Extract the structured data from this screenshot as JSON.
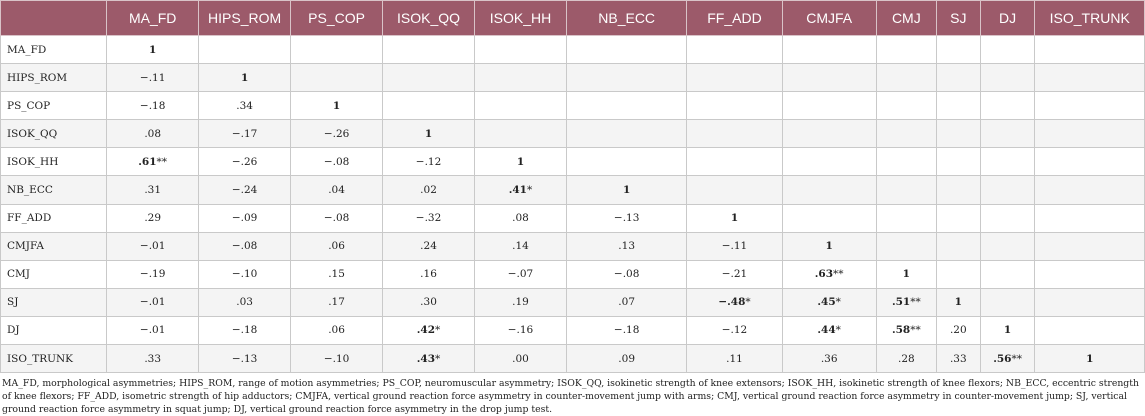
{
  "table": {
    "corner": "",
    "columns": [
      "MA_FD",
      "HIPS_ROM",
      "PS_COP",
      "ISOK_QQ",
      "ISOK_HH",
      "NB_ECC",
      "FF_ADD",
      "CMJFA",
      "CMJ",
      "SJ",
      "DJ",
      "ISO_TRUNK"
    ],
    "rows": [
      {
        "label": "MA_FD",
        "cells": [
          {
            "v": "1",
            "b": true
          },
          {
            "v": ""
          },
          {
            "v": ""
          },
          {
            "v": ""
          },
          {
            "v": ""
          },
          {
            "v": ""
          },
          {
            "v": ""
          },
          {
            "v": ""
          },
          {
            "v": ""
          },
          {
            "v": ""
          },
          {
            "v": ""
          },
          {
            "v": ""
          }
        ]
      },
      {
        "label": "HIPS_ROM",
        "cells": [
          {
            "v": "−.11"
          },
          {
            "v": "1",
            "b": true
          },
          {
            "v": ""
          },
          {
            "v": ""
          },
          {
            "v": ""
          },
          {
            "v": ""
          },
          {
            "v": ""
          },
          {
            "v": ""
          },
          {
            "v": ""
          },
          {
            "v": ""
          },
          {
            "v": ""
          },
          {
            "v": ""
          }
        ]
      },
      {
        "label": "PS_COP",
        "cells": [
          {
            "v": "−.18"
          },
          {
            "v": ".34"
          },
          {
            "v": "1",
            "b": true
          },
          {
            "v": ""
          },
          {
            "v": ""
          },
          {
            "v": ""
          },
          {
            "v": ""
          },
          {
            "v": ""
          },
          {
            "v": ""
          },
          {
            "v": ""
          },
          {
            "v": ""
          },
          {
            "v": ""
          }
        ]
      },
      {
        "label": "ISOK_QQ",
        "cells": [
          {
            "v": ".08"
          },
          {
            "v": "−.17"
          },
          {
            "v": "−.26"
          },
          {
            "v": "1",
            "b": true
          },
          {
            "v": ""
          },
          {
            "v": ""
          },
          {
            "v": ""
          },
          {
            "v": ""
          },
          {
            "v": ""
          },
          {
            "v": ""
          },
          {
            "v": ""
          },
          {
            "v": ""
          }
        ]
      },
      {
        "label": "ISOK_HH",
        "cells": [
          {
            "v": ".61",
            "b": true,
            "s": "**"
          },
          {
            "v": "−.26"
          },
          {
            "v": "−.08"
          },
          {
            "v": "−.12"
          },
          {
            "v": "1",
            "b": true
          },
          {
            "v": ""
          },
          {
            "v": ""
          },
          {
            "v": ""
          },
          {
            "v": ""
          },
          {
            "v": ""
          },
          {
            "v": ""
          },
          {
            "v": ""
          }
        ]
      },
      {
        "label": "NB_ECC",
        "cells": [
          {
            "v": ".31"
          },
          {
            "v": "−.24"
          },
          {
            "v": ".04"
          },
          {
            "v": ".02"
          },
          {
            "v": ".41",
            "b": true,
            "s": "*"
          },
          {
            "v": "1",
            "b": true
          },
          {
            "v": ""
          },
          {
            "v": ""
          },
          {
            "v": ""
          },
          {
            "v": ""
          },
          {
            "v": ""
          },
          {
            "v": ""
          }
        ]
      },
      {
        "label": "FF_ADD",
        "cells": [
          {
            "v": ".29"
          },
          {
            "v": "−.09"
          },
          {
            "v": "−.08"
          },
          {
            "v": "−.32"
          },
          {
            "v": ".08"
          },
          {
            "v": "−.13"
          },
          {
            "v": "1",
            "b": true
          },
          {
            "v": ""
          },
          {
            "v": ""
          },
          {
            "v": ""
          },
          {
            "v": ""
          },
          {
            "v": ""
          }
        ]
      },
      {
        "label": "CMJFA",
        "cells": [
          {
            "v": "−.01"
          },
          {
            "v": "−.08"
          },
          {
            "v": ".06"
          },
          {
            "v": ".24"
          },
          {
            "v": ".14"
          },
          {
            "v": ".13"
          },
          {
            "v": "−.11"
          },
          {
            "v": "1",
            "b": true
          },
          {
            "v": ""
          },
          {
            "v": ""
          },
          {
            "v": ""
          },
          {
            "v": ""
          }
        ]
      },
      {
        "label": "CMJ",
        "cells": [
          {
            "v": "−.19"
          },
          {
            "v": "−.10"
          },
          {
            "v": ".15"
          },
          {
            "v": ".16"
          },
          {
            "v": "−.07"
          },
          {
            "v": "−.08"
          },
          {
            "v": "−.21"
          },
          {
            "v": ".63",
            "b": true,
            "s": "**"
          },
          {
            "v": "1",
            "b": true
          },
          {
            "v": ""
          },
          {
            "v": ""
          },
          {
            "v": ""
          }
        ]
      },
      {
        "label": "SJ",
        "cells": [
          {
            "v": "−.01"
          },
          {
            "v": ".03"
          },
          {
            "v": ".17"
          },
          {
            "v": ".30"
          },
          {
            "v": ".19"
          },
          {
            "v": ".07"
          },
          {
            "v": "−.48",
            "b": true,
            "s": "*"
          },
          {
            "v": ".45",
            "b": true,
            "s": "*"
          },
          {
            "v": ".51",
            "b": true,
            "s": "**"
          },
          {
            "v": "1",
            "b": true
          },
          {
            "v": ""
          },
          {
            "v": ""
          }
        ]
      },
      {
        "label": "DJ",
        "cells": [
          {
            "v": "−.01"
          },
          {
            "v": "−.18"
          },
          {
            "v": ".06"
          },
          {
            "v": ".42",
            "b": true,
            "s": "*"
          },
          {
            "v": "−.16"
          },
          {
            "v": "−.18"
          },
          {
            "v": "−.12"
          },
          {
            "v": ".44",
            "b": true,
            "s": "*"
          },
          {
            "v": ".58",
            "b": true,
            "s": "**"
          },
          {
            "v": ".20"
          },
          {
            "v": "1",
            "b": true
          },
          {
            "v": ""
          }
        ]
      },
      {
        "label": "ISO_TRUNK",
        "cells": [
          {
            "v": ".33"
          },
          {
            "v": "−.13"
          },
          {
            "v": "−.10"
          },
          {
            "v": ".43",
            "b": true,
            "s": "*"
          },
          {
            "v": ".00"
          },
          {
            "v": ".09"
          },
          {
            "v": ".11"
          },
          {
            "v": ".36"
          },
          {
            "v": ".28"
          },
          {
            "v": ".33"
          },
          {
            "v": ".56",
            "b": true,
            "s": "**"
          },
          {
            "v": "1",
            "b": true
          }
        ]
      }
    ]
  },
  "footnote": "MA_FD, morphological asymmetries; HIPS_ROM, range of motion asymmetries; PS_COP, neuromuscular asymmetry; ISOK_QQ, isokinetic strength of knee extensors; ISOK_HH, isokinetic strength of knee flexors; NB_ECC, eccentric strength of knee flexors; FF_ADD, isometric strength of hip adductors; CMJFA, vertical ground reaction force asymmetry in counter-movement jump with arms; CMJ, vertical ground reaction force asymmetry in counter-movement jump; SJ, vertical ground reaction force asymmetry in squat jump; DJ, vertical ground reaction force asymmetry in the drop jump test.",
  "colors": {
    "header_bg": "#9c5a6a",
    "header_text": "#ffffff",
    "grid": "#c9c9c9",
    "stripe": "#f4f4f4"
  }
}
